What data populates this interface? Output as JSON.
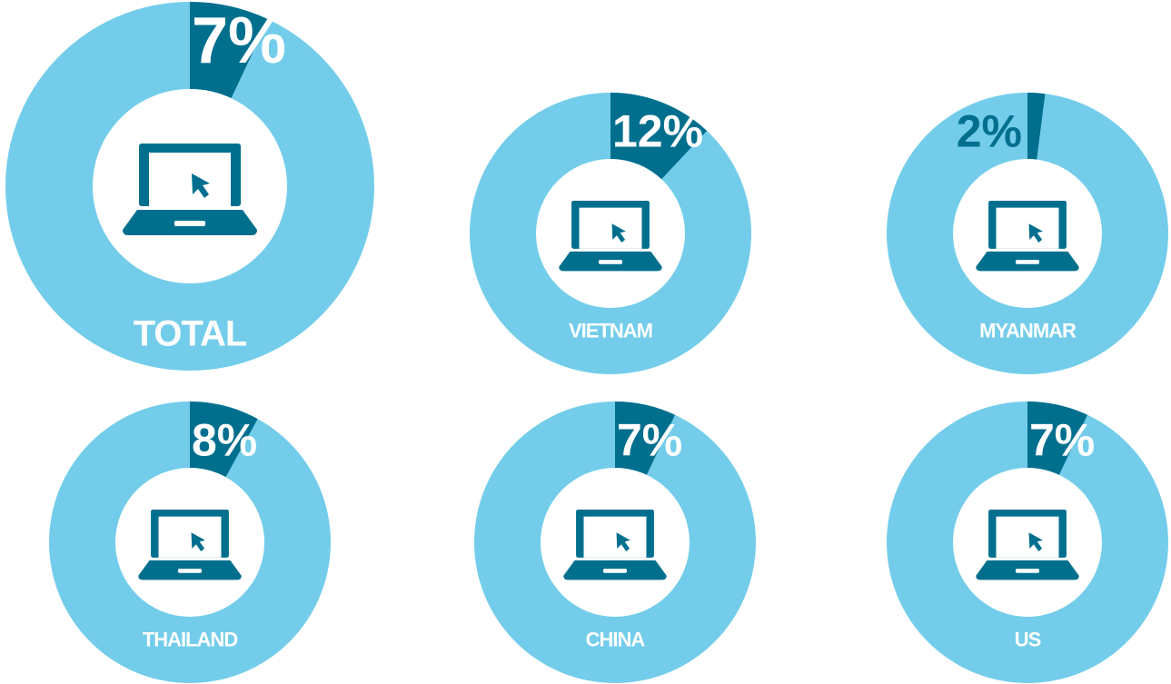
{
  "chart_data": [
    {
      "type": "donut",
      "title": "TOTAL",
      "values": [
        7
      ],
      "value_labels": [
        "7%"
      ],
      "color": "#006f8e",
      "track_color": "#73cdea"
    },
    {
      "type": "donut",
      "title": "VIETNAM",
      "values": [
        12
      ],
      "value_labels": [
        "12%"
      ],
      "color": "#006f8e",
      "track_color": "#73cdea"
    },
    {
      "type": "donut",
      "title": "MYANMAR",
      "values": [
        2
      ],
      "value_labels": [
        "2%"
      ],
      "color": "#006f8e",
      "track_color": "#73cdea"
    },
    {
      "type": "donut",
      "title": "THAILAND",
      "values": [
        8
      ],
      "value_labels": [
        "8%"
      ],
      "color": "#006f8e",
      "track_color": "#73cdea"
    },
    {
      "type": "donut",
      "title": "CHINA",
      "values": [
        7
      ],
      "value_labels": [
        "7%"
      ],
      "color": "#006f8e",
      "track_color": "#73cdea"
    },
    {
      "type": "donut",
      "title": "US",
      "values": [
        7
      ],
      "value_labels": [
        "7%"
      ],
      "color": "#006f8e",
      "track_color": "#73cdea"
    }
  ]
}
